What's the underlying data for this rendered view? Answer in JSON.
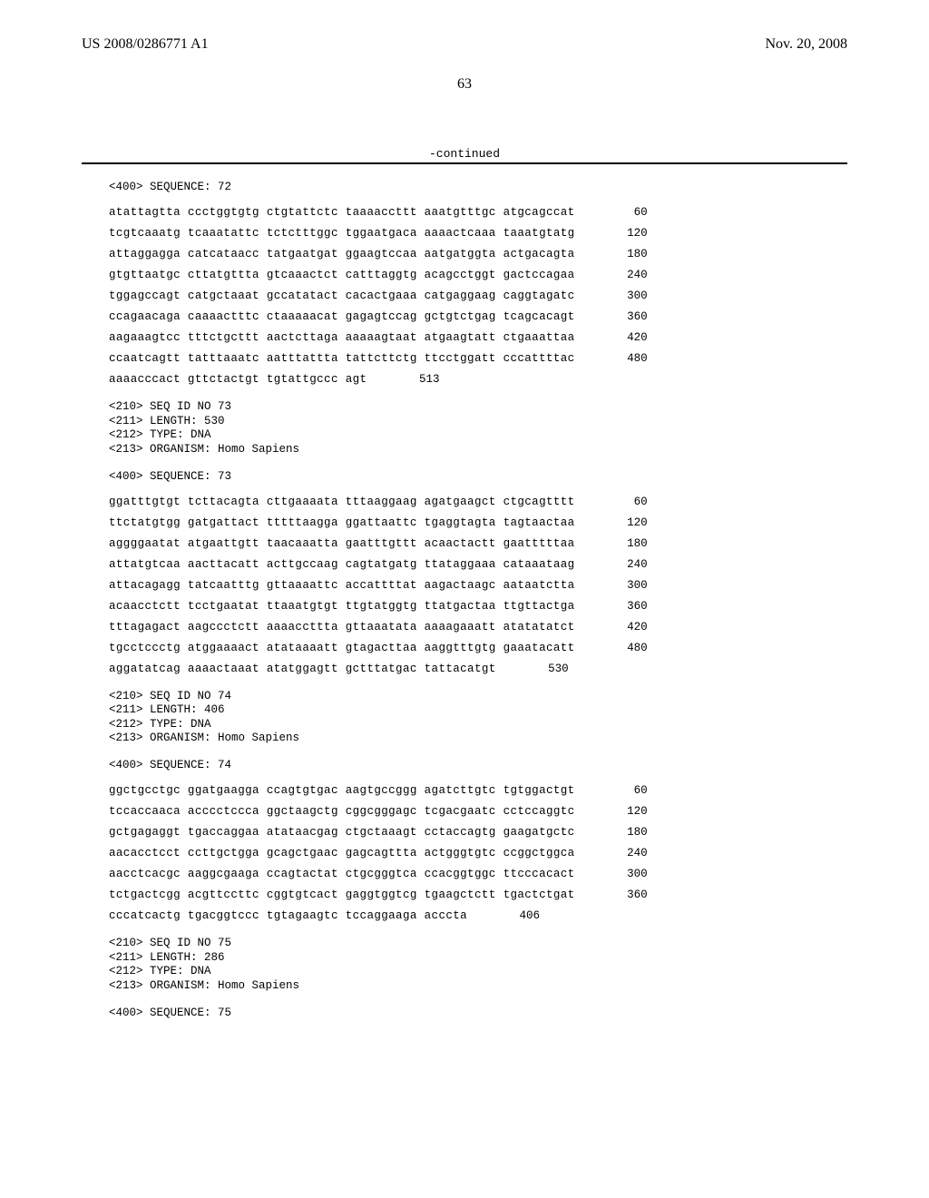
{
  "header": {
    "pub_number": "US 2008/0286771 A1",
    "pub_date": "Nov. 20, 2008"
  },
  "page_number": "63",
  "continued_label": "-continued",
  "sequences": [
    {
      "header_line": "<400> SEQUENCE: 72",
      "rows": [
        {
          "text": "atattagtta ccctggtgtg ctgtattctc taaaaccttt aaatgtttgc atgcagccat",
          "pos": "60"
        },
        {
          "text": "tcgtcaaatg tcaaatattc tctctttggc tggaatgaca aaaactcaaa taaatgtatg",
          "pos": "120"
        },
        {
          "text": "attaggagga catcataacc tatgaatgat ggaagtccaa aatgatggta actgacagta",
          "pos": "180"
        },
        {
          "text": "gtgttaatgc cttatgttta gtcaaactct catttaggtg acagcctggt gactccagaa",
          "pos": "240"
        },
        {
          "text": "tggagccagt catgctaaat gccatatact cacactgaaa catgaggaag caggtagatc",
          "pos": "300"
        },
        {
          "text": "ccagaacaga caaaactttc ctaaaaacat gagagtccag gctgtctgag tcagcacagt",
          "pos": "360"
        },
        {
          "text": "aagaaagtcc tttctgcttt aactcttaga aaaaagtaat atgaagtatt ctgaaattaa",
          "pos": "420"
        },
        {
          "text": "ccaatcagtt tatttaaatc aatttattta tattcttctg ttcctggatt cccattttac",
          "pos": "480"
        },
        {
          "text": "aaaacccact gttctactgt tgtattgccc agt",
          "pos": "513"
        }
      ]
    },
    {
      "meta": [
        "<210> SEQ ID NO 73",
        "<211> LENGTH: 530",
        "<212> TYPE: DNA",
        "<213> ORGANISM: Homo Sapiens"
      ],
      "header_line": "<400> SEQUENCE: 73",
      "rows": [
        {
          "text": "ggatttgtgt tcttacagta cttgaaaata tttaaggaag agatgaagct ctgcagtttt",
          "pos": "60"
        },
        {
          "text": "ttctatgtgg gatgattact tttttaagga ggattaattc tgaggtagta tagtaactaa",
          "pos": "120"
        },
        {
          "text": "aggggaatat atgaattgtt taacaaatta gaatttgttt acaactactt gaatttttaa",
          "pos": "180"
        },
        {
          "text": "attatgtcaa aacttacatt acttgccaag cagtatgatg ttataggaaa cataaataag",
          "pos": "240"
        },
        {
          "text": "attacagagg tatcaatttg gttaaaattc accattttat aagactaagc aataatctta",
          "pos": "300"
        },
        {
          "text": "acaacctctt tcctgaatat ttaaatgtgt ttgtatggtg ttatgactaa ttgttactga",
          "pos": "360"
        },
        {
          "text": "tttagagact aagccctctt aaaaccttta gttaaatata aaaagaaatt atatatatct",
          "pos": "420"
        },
        {
          "text": "tgcctccctg atggaaaact atataaaatt gtagacttaa aaggtttgtg gaaatacatt",
          "pos": "480"
        },
        {
          "text": "aggatatcag aaaactaaat atatggagtt gctttatgac tattacatgt",
          "pos": "530"
        }
      ]
    },
    {
      "meta": [
        "<210> SEQ ID NO 74",
        "<211> LENGTH: 406",
        "<212> TYPE: DNA",
        "<213> ORGANISM: Homo Sapiens"
      ],
      "header_line": "<400> SEQUENCE: 74",
      "rows": [
        {
          "text": "ggctgcctgc ggatgaagga ccagtgtgac aagtgccggg agatcttgtc tgtggactgt",
          "pos": "60"
        },
        {
          "text": "tccaccaaca acccctccca ggctaagctg cggcgggagc tcgacgaatc cctccaggtc",
          "pos": "120"
        },
        {
          "text": "gctgagaggt tgaccaggaa atataacgag ctgctaaagt cctaccagtg gaagatgctc",
          "pos": "180"
        },
        {
          "text": "aacacctcct ccttgctgga gcagctgaac gagcagttta actgggtgtc ccggctggca",
          "pos": "240"
        },
        {
          "text": "aacctcacgc aaggcgaaga ccagtactat ctgcgggtca ccacggtggc ttcccacact",
          "pos": "300"
        },
        {
          "text": "tctgactcgg acgttccttc cggtgtcact gaggtggtcg tgaagctctt tgactctgat",
          "pos": "360"
        },
        {
          "text": "cccatcactg tgacggtccc tgtagaagtc tccaggaaga acccta",
          "pos": "406"
        }
      ]
    },
    {
      "meta": [
        "<210> SEQ ID NO 75",
        "<211> LENGTH: 286",
        "<212> TYPE: DNA",
        "<213> ORGANISM: Homo Sapiens"
      ],
      "header_line": "<400> SEQUENCE: 75",
      "rows": []
    }
  ]
}
